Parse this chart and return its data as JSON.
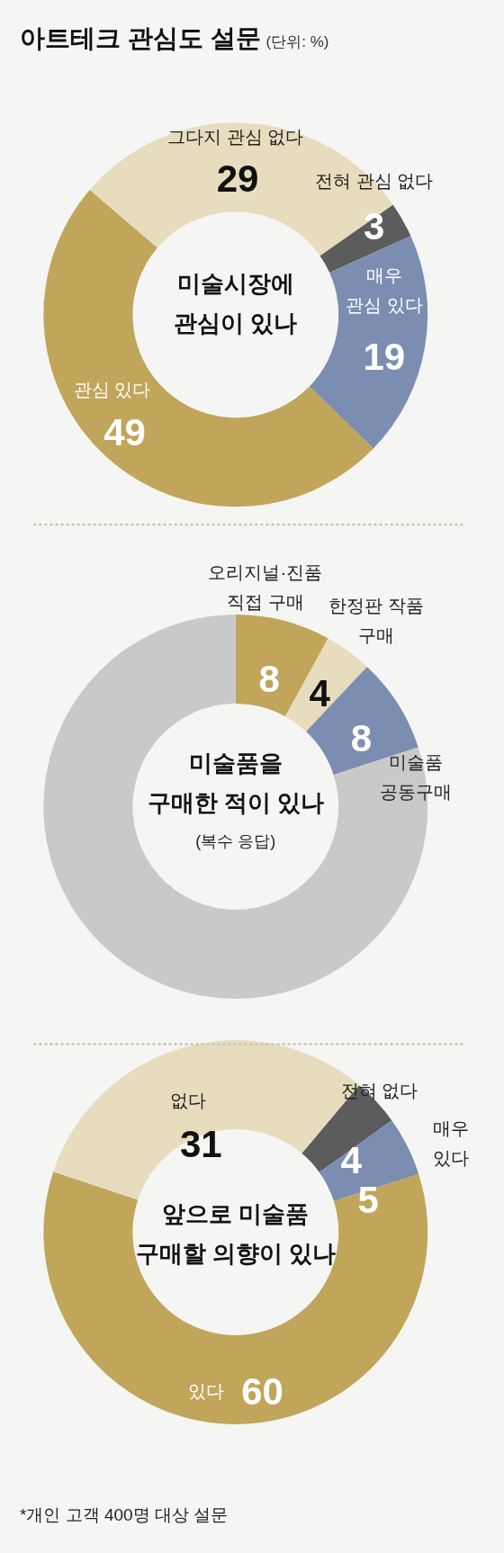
{
  "chart_data": [
    {
      "type": "other",
      "title": "아트테크 관심도 설문",
      "subtitle": "(단위: %)"
    },
    {
      "type": "donut",
      "title": "미술시장에 관심이 있나",
      "categories": [
        "전혀 관심 없다",
        "매우 관심 있다",
        "관심 있다",
        "그다지 관심 없다"
      ],
      "values": [
        3,
        19,
        49,
        29
      ],
      "colors": [
        "#5c5c5c",
        "#7b8eb2",
        "#c0a55a",
        "#e7dcbd"
      ],
      "data_labels": true
    },
    {
      "type": "donut",
      "title": "미술품을 구매한 적이 있나",
      "subtitle": "(복수 응답)",
      "categories": [
        "오리지널·진품 직접 구매",
        "한정판 작품 구매",
        "미술품 공동구매",
        null
      ],
      "values": [
        8,
        4,
        8,
        80
      ],
      "colors": [
        "#c0a55a",
        "#e7dcbd",
        "#7b8eb2",
        "#c9c9c9"
      ],
      "value_labels": [
        "8",
        "4",
        "8",
        null
      ]
    },
    {
      "type": "donut",
      "title": "앞으로 미술품 구매할 의향이 있나",
      "categories": [
        "전혀 없다",
        "매우 있다",
        "있다",
        "없다"
      ],
      "values": [
        4,
        5,
        60,
        31
      ],
      "colors": [
        "#5c5c5c",
        "#7b8eb2",
        "#c0a55a",
        "#e7dcbd"
      ],
      "data_labels": true,
      "annotations": [
        "*개인 고객 400명 대상 설문"
      ]
    }
  ]
}
